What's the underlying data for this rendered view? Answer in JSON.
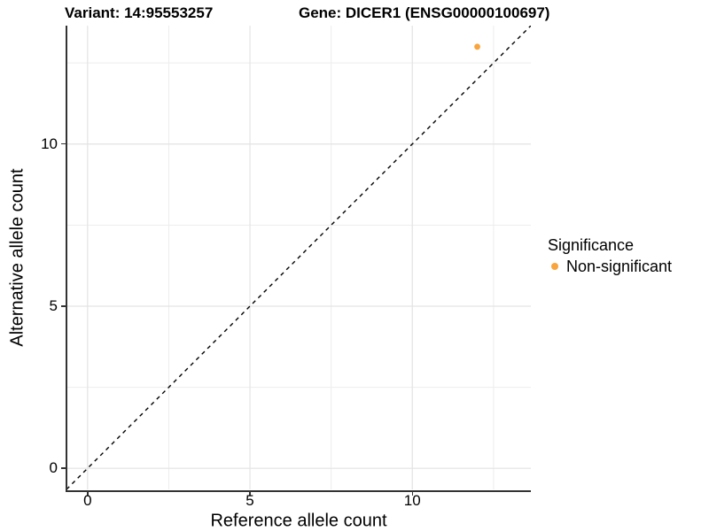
{
  "title": {
    "variant": "Variant: 14:95553257",
    "gene": "Gene: DICER1 (ENSG00000100697)"
  },
  "x_axis": {
    "label": "Reference allele count"
  },
  "y_axis": {
    "label": "Alternative allele count"
  },
  "legend": {
    "title": "Significance",
    "items": [
      {
        "label": "Non-significant",
        "color": "#F9A43C"
      }
    ]
  },
  "colors": {
    "point": "#F9A43C",
    "axis_line": "#333333",
    "grid_major": "#E3E3E3",
    "grid_minor": "#EDEDED",
    "identity_line": "#000000"
  },
  "chart_data": {
    "type": "scatter",
    "title": "Variant: 14:95553257    Gene: DICER1 (ENSG00000100697)",
    "xlabel": "Reference allele count",
    "ylabel": "Alternative allele count",
    "xlim": [
      -0.65,
      13.65
    ],
    "ylim": [
      -0.65,
      13.65
    ],
    "x_ticks": [
      0,
      5,
      10
    ],
    "y_ticks": [
      0,
      5,
      10
    ],
    "x_minor_ticks": [
      2.5,
      7.5,
      12.5
    ],
    "y_minor_ticks": [
      2.5,
      7.5,
      12.5
    ],
    "grid": true,
    "legend_position": "right",
    "series": [
      {
        "name": "Non-significant",
        "color": "#F9A43C",
        "marker": "circle",
        "size": 3.4,
        "points": [
          [
            12,
            13
          ]
        ]
      }
    ],
    "reference_line": {
      "type": "identity",
      "equation": "y = x",
      "style": "dashed",
      "color": "#000000",
      "from": [
        -0.65,
        -0.65
      ],
      "to": [
        13.65,
        13.65
      ]
    }
  }
}
